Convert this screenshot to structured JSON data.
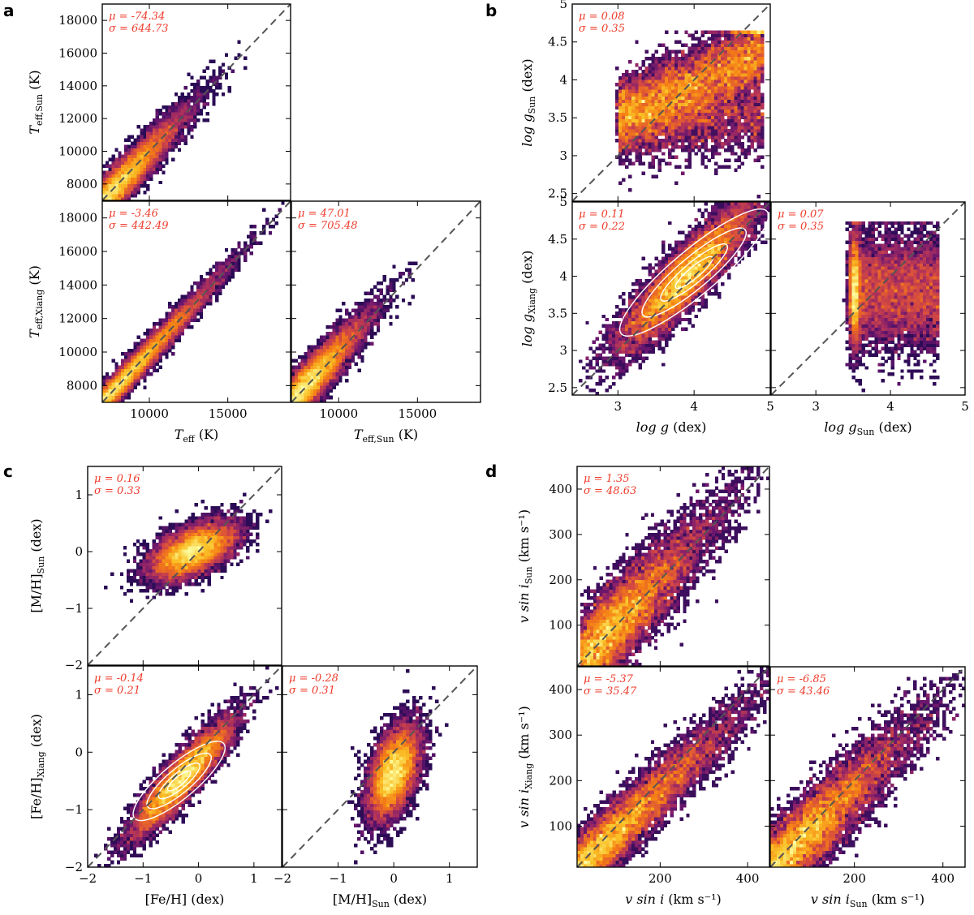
{
  "chart_data": [
    {
      "type": "heatmap",
      "id": "a",
      "letter": "a",
      "colors": {
        "low": "#000004",
        "mid1": "#57106e",
        "mid2": "#bc3754",
        "mid3": "#f98e09",
        "high": "#fcffa4",
        "stat": "#ee3b2b",
        "diagonal": "#555555"
      },
      "xlim": [
        7000,
        19000
      ],
      "ylim": [
        7000,
        19000
      ],
      "xticks": [
        10000,
        15000
      ],
      "yticks": [
        8000,
        10000,
        12000,
        14000,
        16000,
        18000
      ],
      "subplots": [
        {
          "name": "teff-sun-vs-teff",
          "ylabel": "T_eff,Sun (K)",
          "mu_label": "μ = -74.34",
          "sigma_label": "σ = 644.73",
          "mu": -74.34,
          "sigma": 644.73,
          "xlabel": "",
          "contours": false
        },
        {
          "name": "teff-xiang-vs-teff",
          "xlabel": "T_eff (K)",
          "ylabel": "T_eff,Xiang (K)",
          "mu_label": "μ = -3.46",
          "sigma_label": "σ = 442.49",
          "mu": -3.46,
          "sigma": 442.49,
          "contours": false
        },
        {
          "name": "teff-xiang-vs-teff-sun",
          "xlabel": "T_eff,Sun (K)",
          "ylabel": "",
          "mu_label": "μ = 47.01",
          "sigma_label": "σ = 705.48",
          "mu": 47.01,
          "sigma": 705.48,
          "contours": false
        }
      ]
    },
    {
      "type": "heatmap",
      "id": "b",
      "letter": "b",
      "xlim": [
        2.4,
        5.0
      ],
      "ylim": [
        2.4,
        5.0
      ],
      "xticks": [
        3,
        4,
        5
      ],
      "yticks": [
        2.5,
        3.0,
        3.5,
        4.0,
        4.5,
        5.0
      ],
      "subplots": [
        {
          "name": "logg-sun-vs-logg",
          "ylabel": "log g_Sun (dex)",
          "mu_label": "μ = 0.08",
          "sigma_label": "σ = 0.35",
          "mu": 0.08,
          "sigma": 0.35,
          "xlabel": "",
          "contours": false
        },
        {
          "name": "logg-xiang-vs-logg",
          "xlabel": "log g (dex)",
          "ylabel": "log g_Xiang (dex)",
          "mu_label": "μ = 0.11",
          "sigma_label": "σ = 0.22",
          "mu": 0.11,
          "sigma": 0.22,
          "contours": true
        },
        {
          "name": "logg-xiang-vs-logg-sun",
          "xlabel": "log g_Sun (dex)",
          "ylabel": "",
          "mu_label": "μ = 0.07",
          "sigma_label": "σ = 0.35",
          "mu": 0.07,
          "sigma": 0.35,
          "contours": false
        }
      ]
    },
    {
      "type": "heatmap",
      "id": "c",
      "letter": "c",
      "xlim": [
        -2.0,
        1.5
      ],
      "ylim": [
        -2.0,
        1.5
      ],
      "xticks": [
        -2,
        -1,
        0,
        1
      ],
      "yticks": [
        -2,
        -1,
        0,
        1
      ],
      "subplots": [
        {
          "name": "mh-sun-vs-feh",
          "ylabel": "[M/H]_Sun (dex)",
          "mu_label": "μ = 0.16",
          "sigma_label": "σ = 0.33",
          "mu": 0.16,
          "sigma": 0.33,
          "xlabel": "",
          "contours": false
        },
        {
          "name": "feh-xiang-vs-feh",
          "xlabel": "[Fe/H] (dex)",
          "ylabel": "[Fe/H]_Xiang (dex)",
          "mu_label": "μ = -0.14",
          "sigma_label": "σ = 0.21",
          "mu": -0.14,
          "sigma": 0.21,
          "contours": true
        },
        {
          "name": "feh-xiang-vs-mh-sun",
          "xlabel": "[M/H]_Sun (dex)",
          "ylabel": "",
          "mu_label": "μ = -0.28",
          "sigma_label": "σ = 0.31",
          "mu": -0.28,
          "sigma": 0.31,
          "contours": false
        }
      ]
    },
    {
      "type": "heatmap",
      "id": "d",
      "letter": "d",
      "xlim": [
        10,
        450
      ],
      "ylim": [
        10,
        450
      ],
      "xticks": [
        200,
        400
      ],
      "yticks": [
        100,
        200,
        300,
        400
      ],
      "subplots": [
        {
          "name": "vsini-sun-vs-vsini",
          "ylabel": "v sin i_Sun (km s^-1)",
          "mu_label": "μ = 1.35",
          "sigma_label": "σ = 48.63",
          "mu": 1.35,
          "sigma": 48.63,
          "xlabel": "",
          "contours": false
        },
        {
          "name": "vsini-xiang-vs-vsini",
          "xlabel": "v sin i (km s^-1)",
          "ylabel": "v sin i_Xiang (km s^-1)",
          "mu_label": "μ = -5.37",
          "sigma_label": "σ = 35.47",
          "mu": -5.37,
          "sigma": 35.47,
          "contours": false
        },
        {
          "name": "vsini-xiang-vs-vsini-sun",
          "xlabel": "v sin i_Sun (km s^-1)",
          "ylabel": "",
          "mu_label": "μ = -6.85",
          "sigma_label": "σ = 43.46",
          "mu": -6.85,
          "sigma": 43.46,
          "contours": false
        }
      ]
    }
  ]
}
